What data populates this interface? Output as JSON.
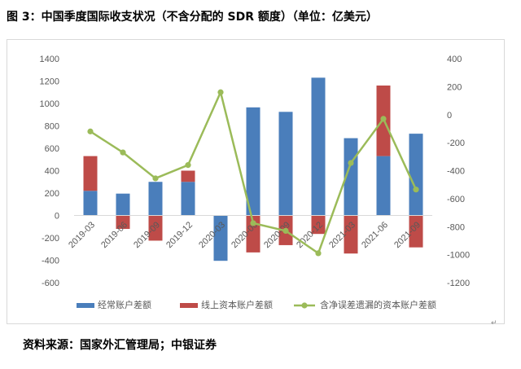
{
  "title": "图 3：中国季度国际收支状况（不含分配的 SDR 额度）（单位：亿美元）",
  "source": "资料来源：国家外汇管理局；中银证券",
  "colors": {
    "current": "#4a7ebb",
    "capital": "#be4b48",
    "netcap": "#9bbb59",
    "axis_text": "#595959",
    "grid": "#d9d9d9"
  },
  "chart_data": {
    "type": "bar",
    "stacked": true,
    "categories": [
      "2019-03",
      "2019-06",
      "2019-09",
      "2019-12",
      "2020-03",
      "2020-06",
      "2020-09",
      "2020-12",
      "2021-03",
      "2021-06",
      "2021-09"
    ],
    "series": [
      {
        "name": "经常账户差额",
        "axis": "left",
        "kind": "bar",
        "color": "#4a7ebb",
        "values": [
          220,
          195,
          300,
          300,
          -405,
          965,
          925,
          1230,
          690,
          530,
          730
        ]
      },
      {
        "name": "线上资本账户差额",
        "axis": "left",
        "kind": "bar",
        "color": "#be4b48",
        "values": [
          310,
          -120,
          -225,
          100,
          0,
          -330,
          -265,
          -165,
          -340,
          630,
          -285
        ]
      },
      {
        "name": "含净误差遗漏的资本账户差额",
        "axis": "right",
        "kind": "line",
        "color": "#9bbb59",
        "values": [
          -120,
          -270,
          -455,
          -360,
          160,
          -775,
          -830,
          -990,
          -345,
          -30,
          -535
        ]
      }
    ],
    "left_axis": {
      "ticks": [
        "1400",
        "1200",
        "1000",
        "800",
        "600",
        "400",
        "200",
        "0",
        "-200",
        "-400",
        "-600"
      ],
      "ylim": [
        -600,
        1400
      ]
    },
    "right_axis": {
      "ticks": [
        "400",
        "200",
        "0",
        "-200",
        "-400",
        "-600",
        "-800",
        "-1000",
        "-1200"
      ],
      "ylim": [
        -1200,
        400
      ]
    },
    "legend": "bottom",
    "grid": false
  }
}
